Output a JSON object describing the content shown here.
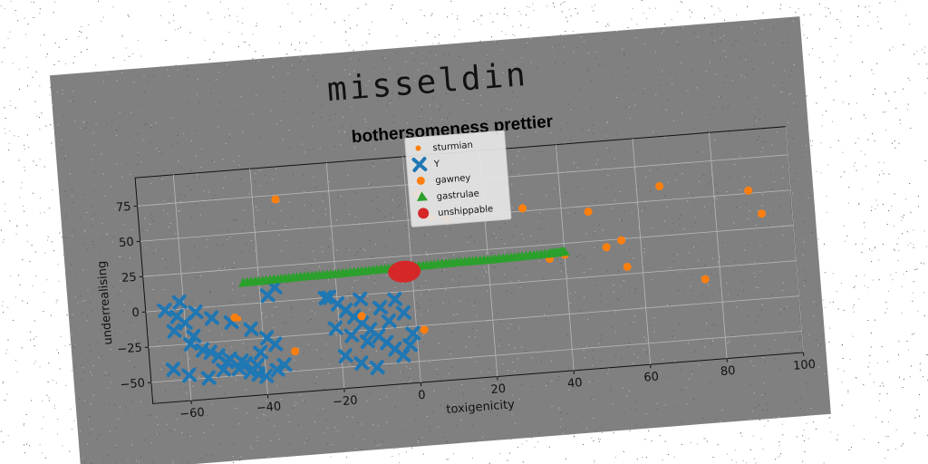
{
  "figure": {
    "suptitle": "misseldin",
    "background_color": "#808080",
    "axes_face_color": "#808080"
  },
  "chart_data": {
    "type": "scatter",
    "title": "bothersomeness prettier",
    "xlabel": "toxigenicity",
    "ylabel": "underrealising",
    "xlim": [
      -70,
      100
    ],
    "ylim": [
      -65,
      95
    ],
    "xticks": [
      -60,
      -40,
      -20,
      0,
      20,
      40,
      60,
      80,
      100
    ],
    "yticks": [
      -50,
      -25,
      0,
      25,
      50,
      75
    ],
    "grid": true,
    "legend_position": "top-center",
    "series": [
      {
        "name": "sturmian",
        "marker": "point",
        "color": "#ff7f0e",
        "x": [
          -47,
          -46
        ],
        "y": [
          -8,
          -10
        ]
      },
      {
        "name": "Y",
        "marker": "x",
        "color": "#1f77b4",
        "x": [
          -65,
          -62,
          -60,
          -58,
          -56,
          -52,
          -50,
          -47,
          -44,
          -42,
          -40,
          -37,
          -35,
          -63,
          -59,
          -54,
          -49,
          -45,
          -42,
          -38,
          -36,
          -61,
          -57,
          -53,
          -48,
          -43,
          -39,
          -64,
          -60,
          -55,
          -51,
          -46,
          -41,
          -37,
          -22,
          -20,
          -18,
          -16,
          -14,
          -12,
          -10,
          -8,
          -6,
          -4,
          -2,
          -21,
          -17,
          -13,
          -9,
          -5,
          -19,
          -15,
          -11,
          -7,
          -3,
          -23,
          -14,
          -1
        ],
        "y": [
          0,
          -5,
          -10,
          -20,
          -30,
          -35,
          -40,
          -45,
          -48,
          -50,
          -52,
          -48,
          -45,
          -15,
          -25,
          -32,
          -38,
          -42,
          -44,
          5,
          10,
          5,
          -3,
          -8,
          -12,
          -18,
          -25,
          -42,
          -47,
          -50,
          -45,
          -40,
          -35,
          -30,
          0,
          -5,
          -10,
          -15,
          -20,
          -25,
          -30,
          -35,
          -40,
          -45,
          -38,
          -22,
          -28,
          -33,
          -10,
          -5,
          -42,
          -48,
          -52,
          -20,
          -15,
          0,
          -3,
          -30
        ]
      },
      {
        "name": "gawney",
        "marker": "circle",
        "color": "#ff7f0e",
        "x": [
          -34,
          -32,
          -14,
          2,
          6,
          10,
          30,
          36,
          40,
          47,
          51,
          55,
          56,
          66,
          76,
          89,
          92,
          3,
          -47
        ],
        "y": [
          72,
          -36,
          -15,
          -28,
          51,
          49,
          52,
          15,
          17,
          46,
          20,
          24,
          5,
          60,
          -8,
          52,
          35,
          68,
          -9
        ]
      },
      {
        "name": "gastrulae",
        "marker": "triangle",
        "color": "#2ca02c",
        "x": [
          -44,
          -36,
          -28,
          -20,
          -12,
          -4,
          4,
          12,
          20,
          28,
          36,
          40
        ],
        "y": [
          15,
          15.5,
          16,
          16,
          16.5,
          17,
          17,
          17.5,
          17.5,
          18,
          18.5,
          19
        ]
      },
      {
        "name": "unshippable",
        "marker": "circle-large",
        "color": "#d62728",
        "x": [
          -2
        ],
        "y": [
          14
        ]
      }
    ]
  }
}
